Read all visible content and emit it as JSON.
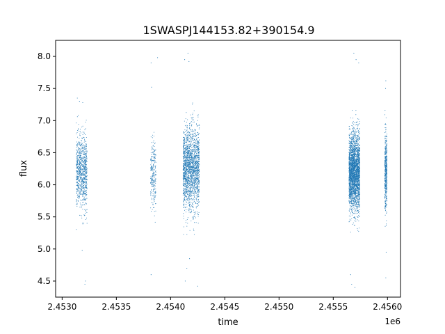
{
  "chart_data": {
    "type": "scatter",
    "title": "1SWASPJ144153.82+390154.9",
    "xlabel": "time",
    "ylabel": "flux",
    "x_offset_label": "1e6",
    "x_ticks": [
      2.453,
      2.4535,
      2.454,
      2.4545,
      2.455,
      2.4555,
      2.456
    ],
    "x_tick_labels": [
      "2.4530",
      "2.4535",
      "2.4540",
      "2.4545",
      "2.4550",
      "2.4555",
      "2.4560"
    ],
    "y_ticks": [
      4.5,
      5.0,
      5.5,
      6.0,
      6.5,
      7.0,
      7.5,
      8.0
    ],
    "y_tick_labels": [
      "4.5",
      "5.0",
      "5.5",
      "6.0",
      "6.5",
      "7.0",
      "7.5",
      "8.0"
    ],
    "xlim": [
      2452940,
      2456120
    ],
    "ylim": [
      4.25,
      8.25
    ],
    "grid": false,
    "legend": false,
    "point_color": "#1f77b4",
    "clusters": [
      {
        "x_start": 2453130,
        "x_end": 2453230,
        "y_center": 6.2,
        "y_spread": 0.28,
        "n_points": 900,
        "outliers": [
          [
            2453140,
            7.35
          ],
          [
            2453160,
            7.3
          ],
          [
            2453190,
            7.28
          ],
          [
            2453185,
            4.98
          ],
          [
            2453215,
            4.5
          ],
          [
            2453210,
            4.45
          ],
          [
            2453230,
            5.4
          ]
        ]
      },
      {
        "x_start": 2453815,
        "x_end": 2453865,
        "y_center": 6.15,
        "y_spread": 0.28,
        "n_points": 260,
        "outliers": [
          [
            2453820,
            7.9
          ],
          [
            2453825,
            7.52
          ],
          [
            2453820,
            4.6
          ],
          [
            2453880,
            7.98
          ]
        ]
      },
      {
        "x_start": 2454115,
        "x_end": 2454265,
        "y_center": 6.25,
        "y_spread": 0.32,
        "n_points": 2000,
        "outliers": [
          [
            2454130,
            7.95
          ],
          [
            2454160,
            8.05
          ],
          [
            2454170,
            7.92
          ],
          [
            2454150,
            4.7
          ],
          [
            2454135,
            4.5
          ],
          [
            2454250,
            4.42
          ],
          [
            2454175,
            4.85
          ]
        ]
      },
      {
        "x_start": 2455645,
        "x_end": 2455745,
        "y_center": 6.2,
        "y_spread": 0.3,
        "n_points": 2800,
        "outliers": [
          [
            2455690,
            8.05
          ],
          [
            2455710,
            7.95
          ],
          [
            2455670,
            4.45
          ],
          [
            2455700,
            4.4
          ],
          [
            2455735,
            7.9
          ],
          [
            2455660,
            4.6
          ]
        ]
      },
      {
        "x_start": 2455975,
        "x_end": 2455995,
        "y_center": 6.2,
        "y_spread": 0.3,
        "n_points": 500,
        "outliers": [
          [
            2455985,
            7.62
          ],
          [
            2455982,
            7.5
          ],
          [
            2455985,
            4.55
          ],
          [
            2455988,
            4.95
          ]
        ]
      }
    ]
  }
}
